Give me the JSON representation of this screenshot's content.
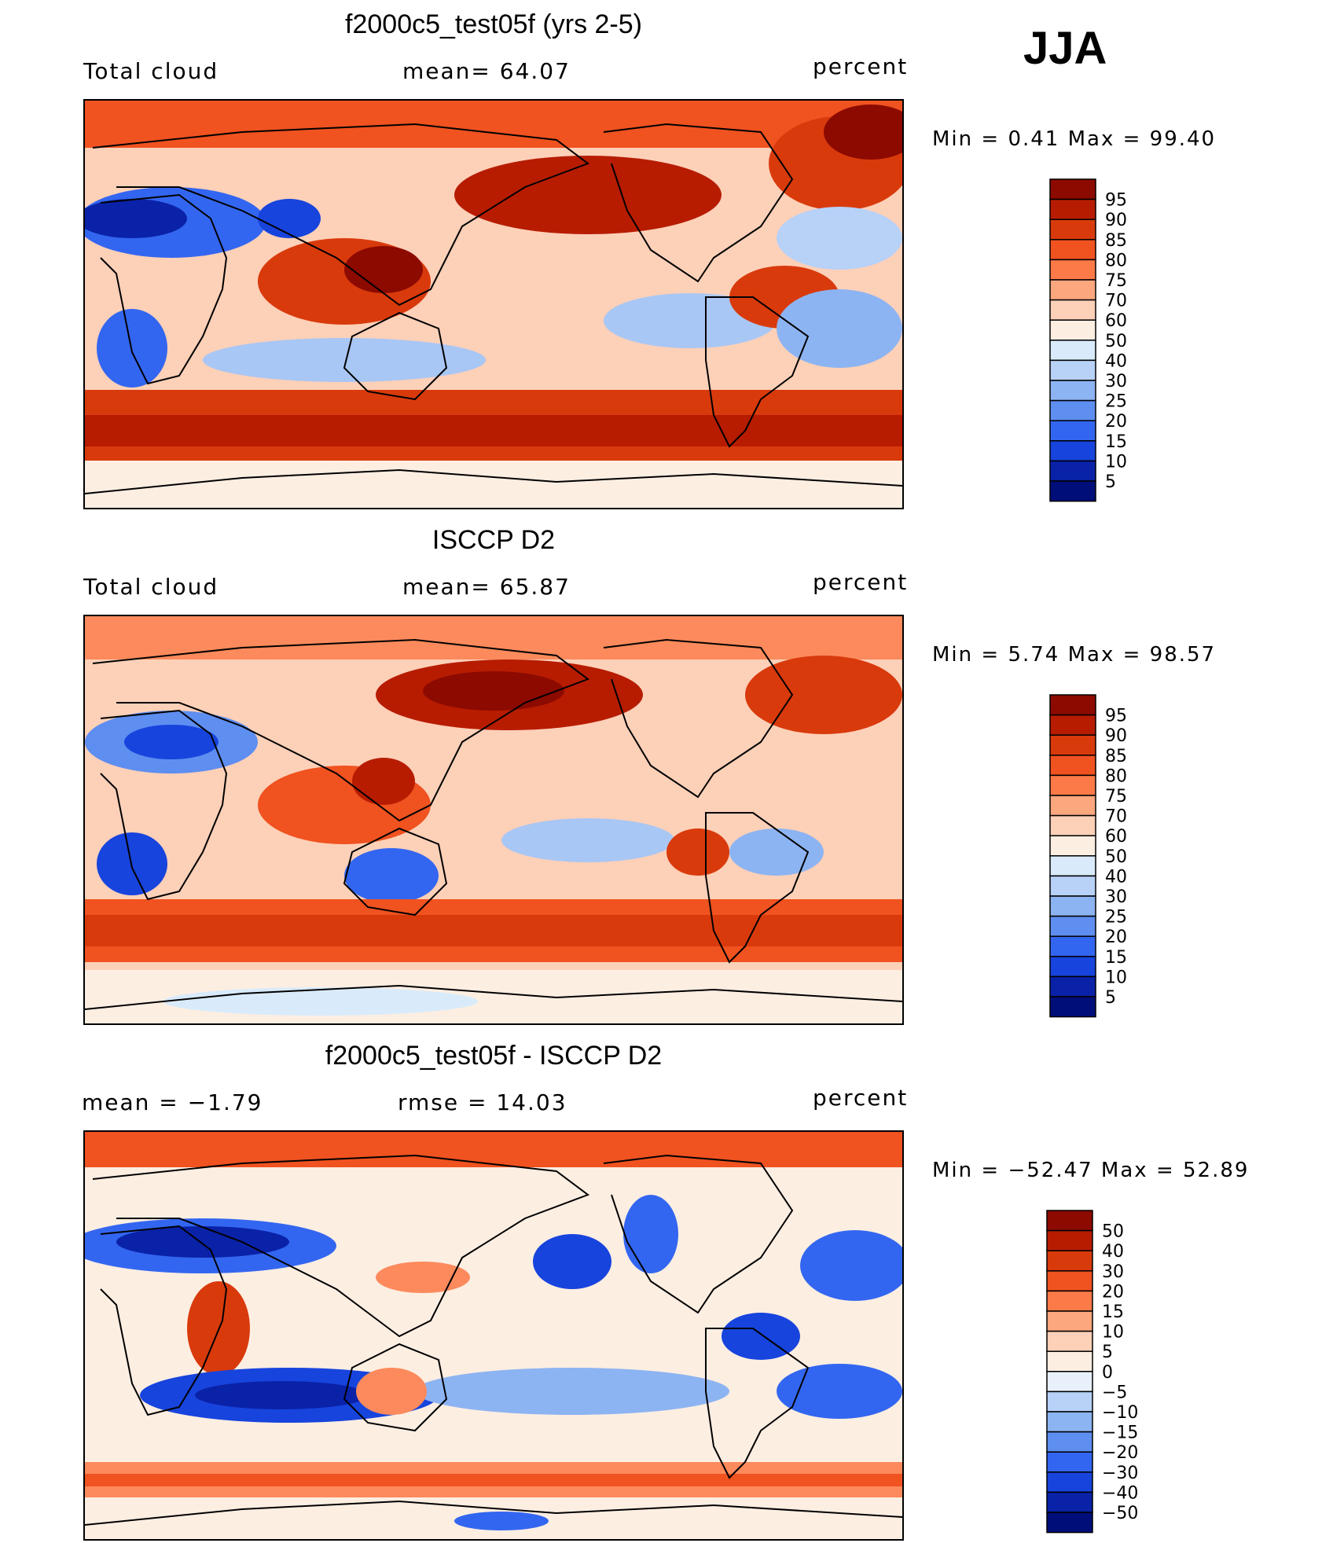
{
  "season": "JJA",
  "panels": [
    {
      "id": "model",
      "title": "f2000c5_test05f (yrs 2-5)",
      "left_label": "Total cloud",
      "center_label": "mean=   64.07",
      "units": "percent",
      "minmax": "Min  =    0.41  Max  =   99.40",
      "colorbar": {
        "levels": [
          "95",
          "90",
          "85",
          "80",
          "75",
          "70",
          "60",
          "50",
          "40",
          "30",
          "25",
          "20",
          "15",
          "10",
          "5"
        ],
        "colors": [
          "#8c0a00",
          "#b71c00",
          "#d93a0c",
          "#f05220",
          "#fc7a48",
          "#fca77e",
          "#fdd0b8",
          "#fdeee2",
          "#d9ebfa",
          "#b7d1f7",
          "#8db4f2",
          "#5e8ef0",
          "#3366f0",
          "#1744dd",
          "#0a22a8",
          "#000e7a"
        ]
      }
    },
    {
      "id": "obs",
      "title": "ISCCP D2",
      "left_label": "Total cloud",
      "center_label": "mean=   65.87",
      "units": "percent",
      "minmax": "Min  =    5.74  Max  =   98.57",
      "colorbar": {
        "levels": [
          "95",
          "90",
          "85",
          "80",
          "75",
          "70",
          "60",
          "50",
          "40",
          "30",
          "25",
          "20",
          "15",
          "10",
          "5"
        ],
        "colors": [
          "#8c0a00",
          "#b71c00",
          "#d93a0c",
          "#f05220",
          "#fc7a48",
          "#fca77e",
          "#fdd0b8",
          "#fdeee2",
          "#d9ebfa",
          "#b7d1f7",
          "#8db4f2",
          "#5e8ef0",
          "#3366f0",
          "#1744dd",
          "#0a22a8",
          "#000e7a"
        ]
      }
    },
    {
      "id": "diff",
      "title": "f2000c5_test05f - ISCCP D2",
      "left_label": "mean  =   −1.79",
      "center_label": "rmse  =    14.03",
      "units": "percent",
      "minmax": "Min  = −52.47  Max  =   52.89",
      "colorbar": {
        "levels": [
          "50",
          "40",
          "30",
          "20",
          "15",
          "10",
          "5",
          "0",
          "−5",
          "−10",
          "−15",
          "−20",
          "−30",
          "−40",
          "−50"
        ],
        "colors": [
          "#8c0a00",
          "#b71c00",
          "#d93a0c",
          "#f05220",
          "#fc7a48",
          "#fca77e",
          "#fdd0b8",
          "#fdeee2",
          "#e8f1fb",
          "#b7d1f7",
          "#8db4f2",
          "#5e8ef0",
          "#3366f0",
          "#1744dd",
          "#0a22a8",
          "#000e7a"
        ]
      }
    }
  ],
  "field_colors": {
    "deepred": "#a81500",
    "red": "#d93a0c",
    "orange": "#f05220",
    "salmon": "#fc8a5c",
    "peach": "#fdbfa0",
    "cream": "#fdeee2",
    "paleblue": "#d9ebfa",
    "lightblue": "#a9c7f4",
    "blue": "#5e8ef0",
    "darkblue": "#1744dd",
    "navy": "#0a22a8"
  }
}
